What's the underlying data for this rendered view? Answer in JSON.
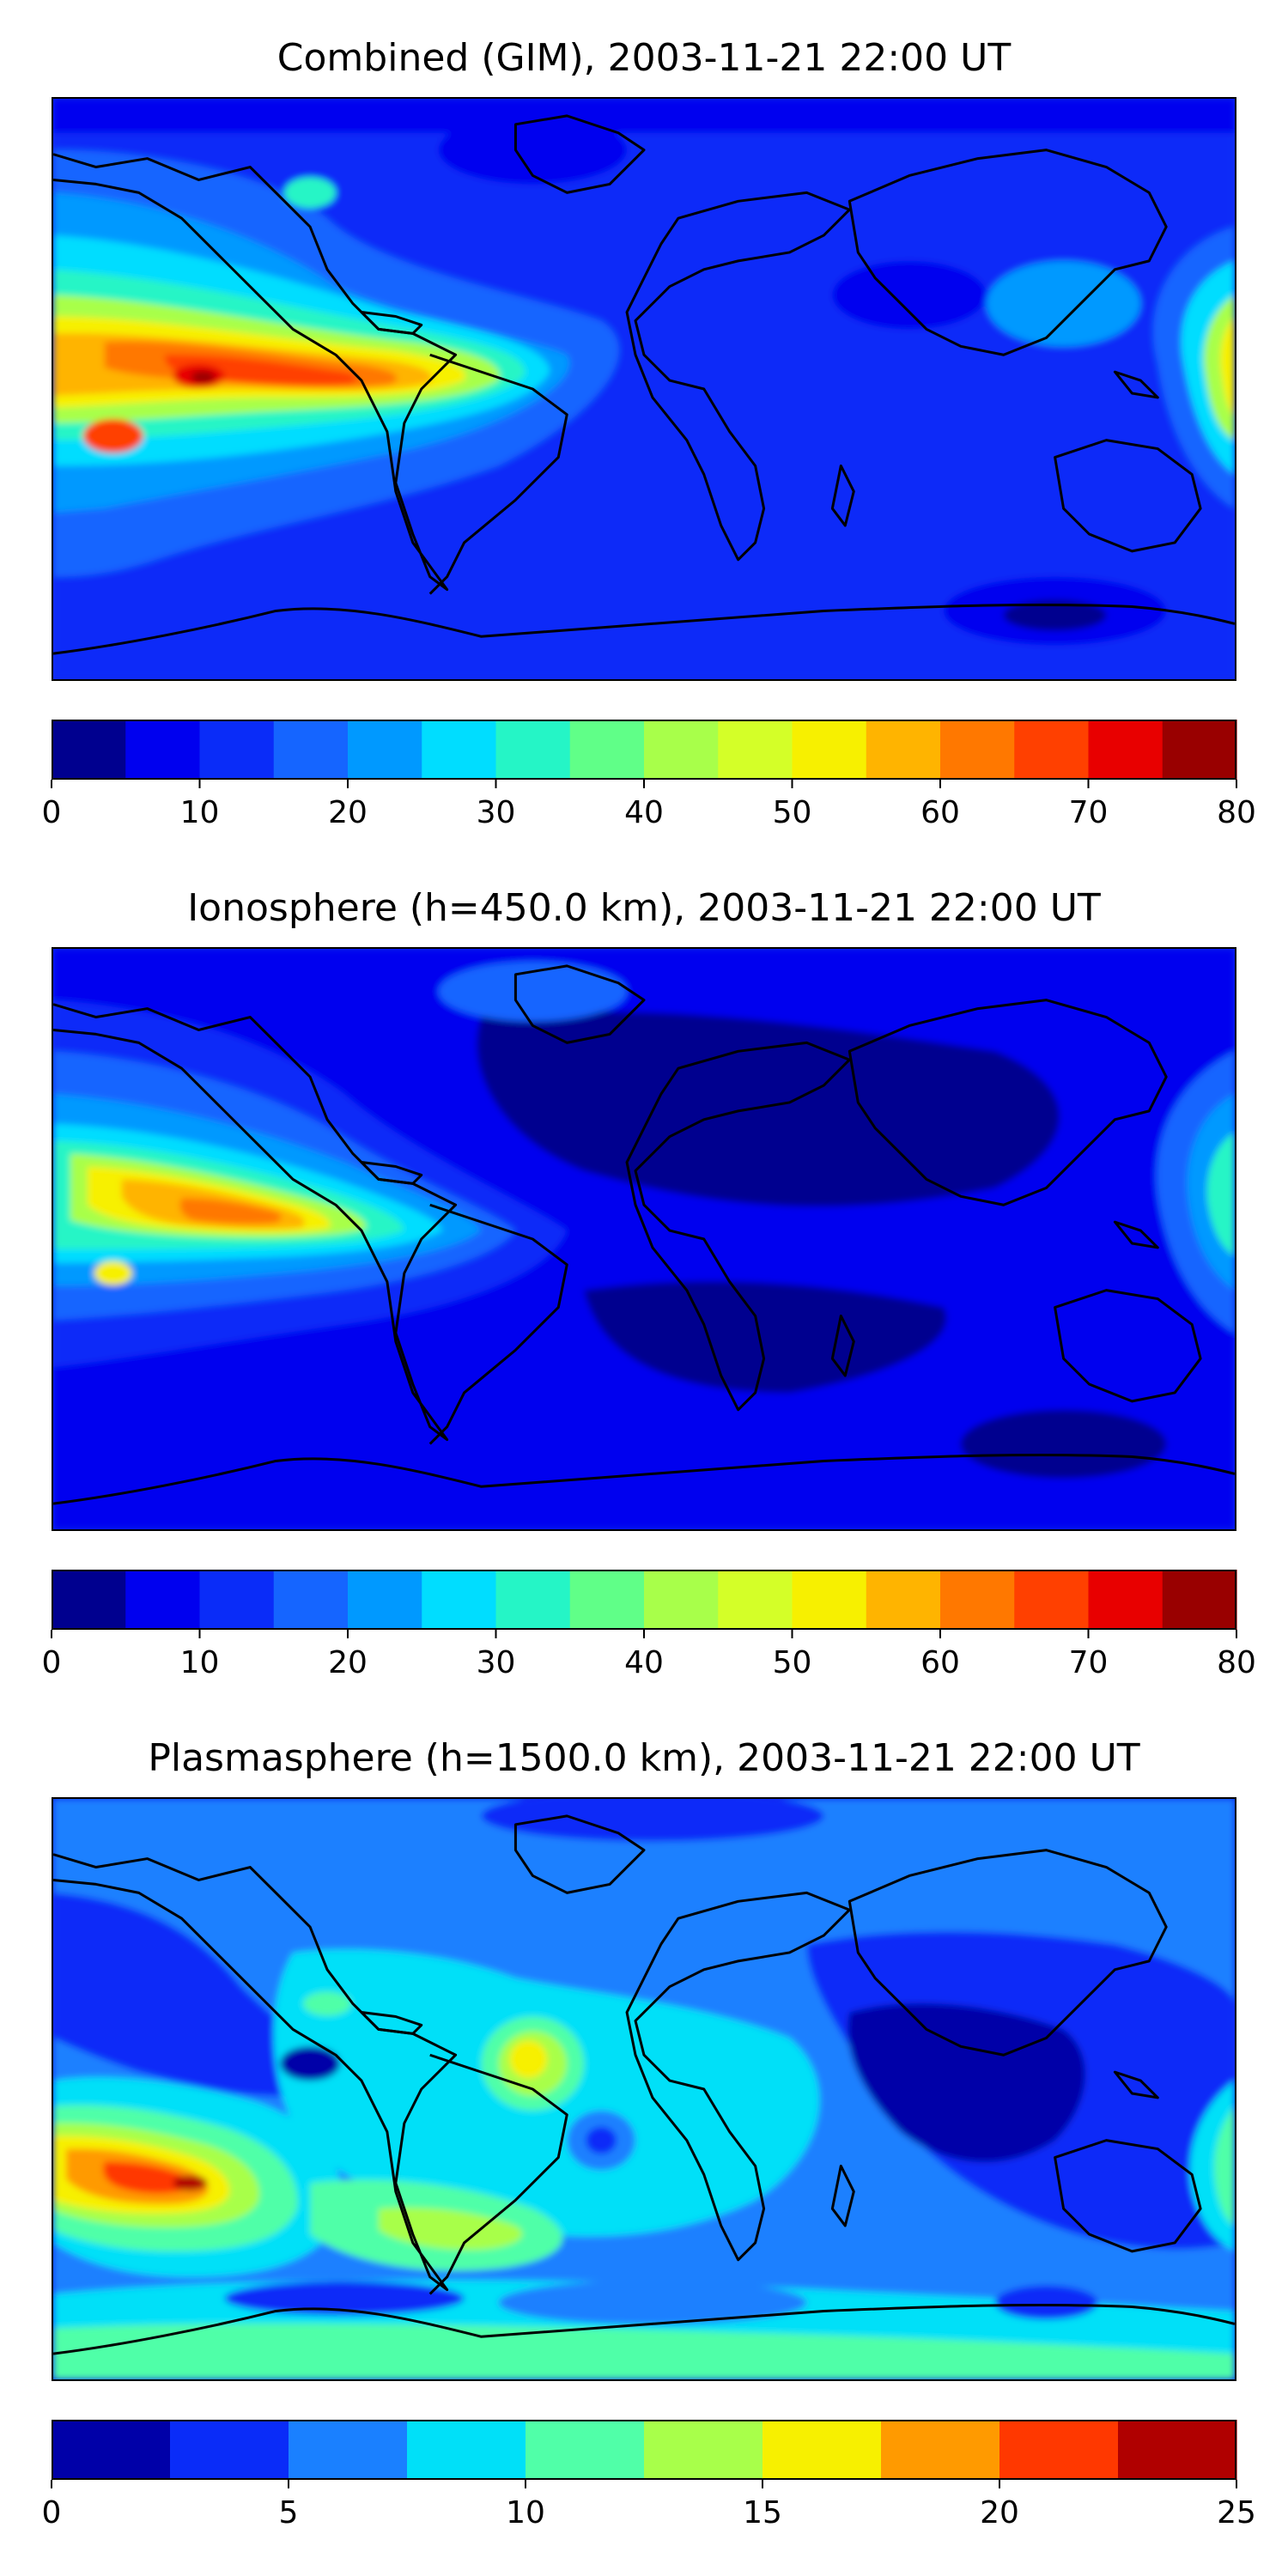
{
  "panels": [
    {
      "title": "Combined (GIM), 2003-11-21 22:00 UT",
      "colorbar": {
        "ticks": [
          "0",
          "10",
          "20",
          "30",
          "40",
          "50",
          "60",
          "70",
          "80"
        ],
        "min": 0,
        "max": 80,
        "step": 5,
        "colors": [
          "#00008f",
          "#0000ef",
          "#0a2cf8",
          "#1565ff",
          "#0099ff",
          "#00ddff",
          "#25f5c6",
          "#60ff88",
          "#a8ff4a",
          "#d4ff28",
          "#f7f000",
          "#ffb400",
          "#ff7800",
          "#ff4000",
          "#e80000",
          "#990000"
        ]
      }
    },
    {
      "title": "Ionosphere  (h=450.0 km), 2003-11-21 22:00 UT",
      "colorbar": {
        "ticks": [
          "0",
          "10",
          "20",
          "30",
          "40",
          "50",
          "60",
          "70",
          "80"
        ],
        "min": 0,
        "max": 80,
        "step": 5,
        "colors": [
          "#00008f",
          "#0000ef",
          "#0a2cf8",
          "#1565ff",
          "#0099ff",
          "#00ddff",
          "#25f5c6",
          "#60ff88",
          "#a8ff4a",
          "#d4ff28",
          "#f7f000",
          "#ffb400",
          "#ff7800",
          "#ff4000",
          "#e80000",
          "#990000"
        ]
      }
    },
    {
      "title": "Plasmasphere (h=1500.0 km), 2003-11-21 22:00 UT",
      "colorbar": {
        "ticks": [
          "0",
          "5",
          "10",
          "15",
          "20",
          "25"
        ],
        "min": 0,
        "max": 25,
        "step": 2.5,
        "colors": [
          "#0000a8",
          "#0a2cf8",
          "#1a80ff",
          "#00e0f8",
          "#50ffa8",
          "#a8ff4a",
          "#f7f000",
          "#ff9a00",
          "#ff3800",
          "#b00000"
        ]
      }
    }
  ]
}
